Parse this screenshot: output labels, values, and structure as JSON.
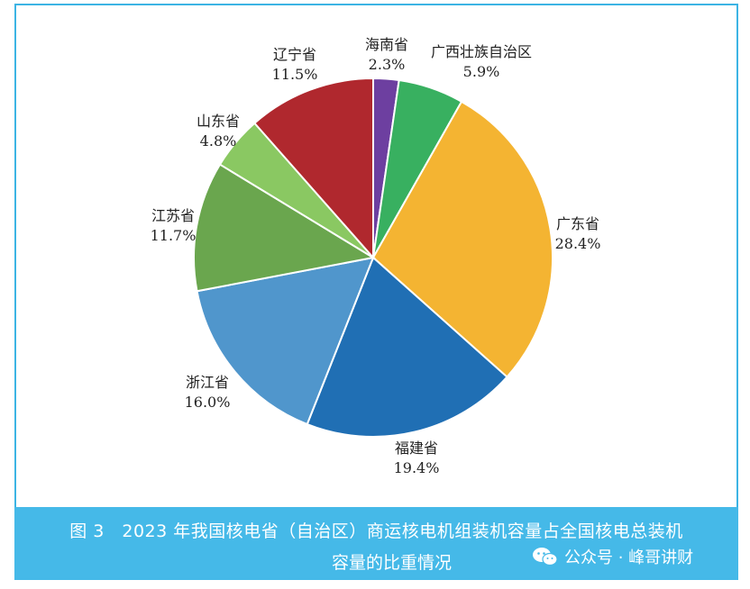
{
  "chart_data": {
    "type": "pie",
    "title": "图 3　2023 年我国核电省（自治区）商运核电机组装机容量占全国核电总装机容量的比重情况",
    "slices": [
      {
        "label": "海南省",
        "value": 2.3,
        "value_label": "2.3%",
        "color": "#6d3fa0"
      },
      {
        "label": "广西壮族自治区",
        "value": 5.9,
        "value_label": "5.9%",
        "color": "#38b060"
      },
      {
        "label": "广东省",
        "value": 28.4,
        "value_label": "28.4%",
        "color": "#f4b432"
      },
      {
        "label": "福建省",
        "value": 19.4,
        "value_label": "19.4%",
        "color": "#206fb4"
      },
      {
        "label": "浙江省",
        "value": 16.0,
        "value_label": "16.0%",
        "color": "#5096cc"
      },
      {
        "label": "江苏省",
        "value": 11.7,
        "value_label": "11.7%",
        "color": "#6aa64e"
      },
      {
        "label": "山东省",
        "value": 4.8,
        "value_label": "4.8%",
        "color": "#8ac862"
      },
      {
        "label": "辽宁省",
        "value": 11.5,
        "value_label": "11.5%",
        "color": "#b0282e"
      }
    ],
    "start": "12 o'clock",
    "direction": "clockwise",
    "legend": "none"
  },
  "caption": {
    "line1": "图 3　2023 年我国核电省（自治区）商运核电机组装机容量占全国核电总装机",
    "line2": "容量的比重情况"
  },
  "watermark": {
    "icon": "wechat-icon",
    "text": "公众号 · 峰哥讲财"
  },
  "colors": {
    "frame": "#3cb4e4",
    "caption_bg": "#45b9e8"
  }
}
